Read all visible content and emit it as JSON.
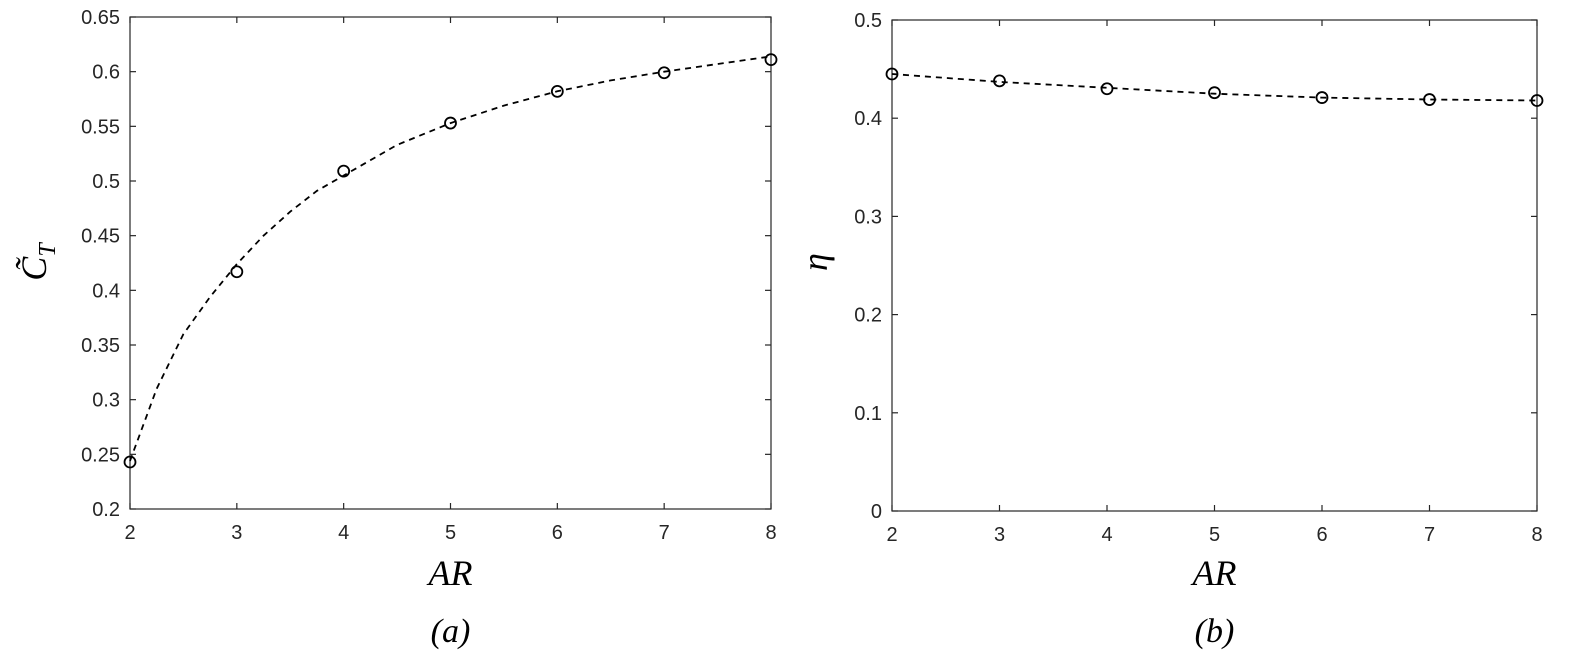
{
  "chart_data": [
    {
      "type": "scatter",
      "panel_label": "(a)",
      "xlabel": "AR",
      "ylabel": "C̃_T",
      "xlim": [
        2,
        8
      ],
      "ylim": [
        0.2,
        0.65
      ],
      "xticks": [
        2,
        3,
        4,
        5,
        6,
        7,
        8
      ],
      "yticks": [
        0.2,
        0.25,
        0.3,
        0.35,
        0.4,
        0.45,
        0.5,
        0.55,
        0.6,
        0.65
      ],
      "ytick_labels": [
        "0.2",
        "0.25",
        "0.3",
        "0.35",
        "0.4",
        "0.45",
        "0.5",
        "0.55",
        "0.6",
        "0.65"
      ],
      "grid": false,
      "series": [
        {
          "style": "open-circle markers",
          "x": [
            2,
            3,
            4,
            5,
            6,
            7,
            8
          ],
          "y": [
            0.243,
            0.417,
            0.509,
            0.553,
            0.582,
            0.599,
            0.611
          ]
        },
        {
          "style": "dashed fit line",
          "x": [
            2.0,
            2.25,
            2.5,
            2.75,
            3.0,
            3.25,
            3.5,
            3.75,
            4.0,
            4.5,
            5.0,
            5.5,
            6.0,
            6.5,
            7.0,
            7.5,
            8.0
          ],
          "y": [
            0.244,
            0.31,
            0.36,
            0.394,
            0.424,
            0.45,
            0.472,
            0.491,
            0.505,
            0.533,
            0.553,
            0.569,
            0.582,
            0.592,
            0.6,
            0.607,
            0.614
          ]
        }
      ]
    },
    {
      "type": "scatter",
      "panel_label": "(b)",
      "xlabel": "AR",
      "ylabel": "η",
      "xlim": [
        2,
        8
      ],
      "ylim": [
        0,
        0.5
      ],
      "xticks": [
        2,
        3,
        4,
        5,
        6,
        7,
        8
      ],
      "yticks": [
        0,
        0.1,
        0.2,
        0.3,
        0.4,
        0.5
      ],
      "ytick_labels": [
        "0",
        "0.1",
        "0.2",
        "0.3",
        "0.4",
        "0.5"
      ],
      "grid": false,
      "series": [
        {
          "style": "open-circle markers",
          "x": [
            2,
            3,
            4,
            5,
            6,
            7,
            8
          ],
          "y": [
            0.445,
            0.438,
            0.43,
            0.426,
            0.421,
            0.419,
            0.418
          ]
        },
        {
          "style": "dashed fit line",
          "x": [
            2.0,
            3.0,
            4.0,
            5.0,
            6.0,
            7.0,
            8.0
          ],
          "y": [
            0.445,
            0.437,
            0.431,
            0.425,
            0.421,
            0.419,
            0.418
          ]
        }
      ]
    }
  ]
}
